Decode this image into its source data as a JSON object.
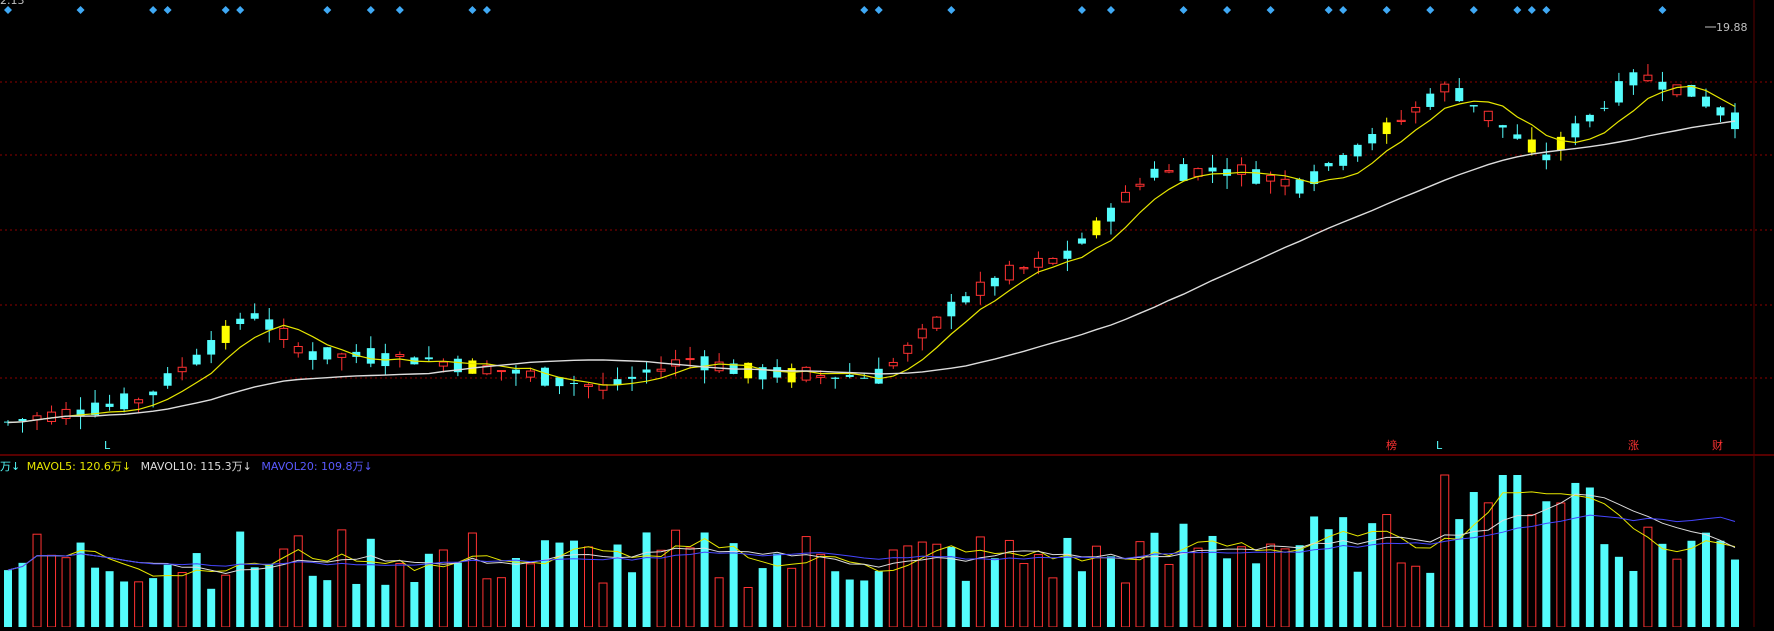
{
  "colors": {
    "background": "#000000",
    "up": "#ff3232",
    "down": "#54fcfc",
    "highlight": "#ffff00",
    "ma_short": "#e6e600",
    "ma_long": "#dcdcdc",
    "mavol20": "#4646ff",
    "grid": "#8b0000",
    "signal": "#3fa9f5",
    "text": "#c0c0c0"
  },
  "price_panel": {
    "max_label": "19.88",
    "top_left_fragment": "2.13",
    "markers": [
      {
        "text": "L",
        "color": "#54fcfc"
      },
      {
        "text": "榜",
        "color": "#ff3232"
      },
      {
        "text": "L",
        "color": "#54fcfc"
      },
      {
        "text": "涨",
        "color": "#ff3232"
      },
      {
        "text": "财",
        "color": "#ff3232"
      }
    ]
  },
  "volume_panel": {
    "legend": {
      "prefix": "万↓",
      "mavol5": "MAVOL5: 120.6万↓",
      "mavol10": "MAVOL10: 115.3万↓",
      "mavol20": "MAVOL20: 109.8万↓"
    }
  },
  "chart_data": {
    "type": "candlestick",
    "title": "",
    "price_max": 19.88,
    "indicators": [
      "MA (short)",
      "MA (long)",
      "MAVOL5",
      "MAVOL10",
      "MAVOL20"
    ],
    "candles": [],
    "volumes": []
  }
}
